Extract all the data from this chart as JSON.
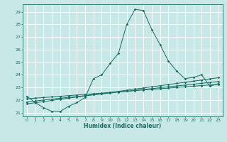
{
  "xlabel": "Humidex (Indice chaleur)",
  "xlim": [
    -0.5,
    23.5
  ],
  "ylim": [
    20.7,
    29.6
  ],
  "yticks": [
    21,
    22,
    23,
    24,
    25,
    26,
    27,
    28,
    29
  ],
  "xticks": [
    0,
    1,
    2,
    3,
    4,
    5,
    6,
    7,
    8,
    9,
    10,
    11,
    12,
    13,
    14,
    15,
    16,
    17,
    18,
    19,
    20,
    21,
    22,
    23
  ],
  "bg_color": "#c8e8e8",
  "grid_color": "#ffffff",
  "line_color": "#1a6b60",
  "series1_x": [
    0,
    1,
    2,
    3,
    4,
    5,
    6,
    7,
    8,
    9,
    10,
    11,
    12,
    13,
    14,
    15,
    16,
    17,
    18,
    19,
    20,
    21,
    22,
    23
  ],
  "series1_y": [
    22.3,
    21.8,
    21.4,
    21.1,
    21.1,
    21.5,
    21.8,
    22.2,
    23.7,
    24.0,
    24.9,
    25.7,
    28.0,
    29.2,
    29.1,
    27.6,
    26.4,
    25.1,
    24.3,
    23.7,
    23.8,
    24.0,
    23.1,
    23.3
  ],
  "series2_x": [
    0,
    1,
    2,
    3,
    4,
    5,
    6,
    7,
    8,
    9,
    10,
    11,
    12,
    13,
    14,
    15,
    16,
    17,
    18,
    19,
    20,
    21,
    22,
    23
  ],
  "series2_y": [
    22.1,
    22.15,
    22.2,
    22.25,
    22.3,
    22.35,
    22.4,
    22.45,
    22.5,
    22.55,
    22.6,
    22.65,
    22.7,
    22.75,
    22.8,
    22.85,
    22.9,
    22.95,
    23.0,
    23.05,
    23.1,
    23.15,
    23.2,
    23.25
  ],
  "series3_x": [
    0,
    1,
    2,
    3,
    4,
    5,
    6,
    7,
    8,
    9,
    10,
    11,
    12,
    13,
    14,
    15,
    16,
    17,
    18,
    19,
    20,
    21,
    22,
    23
  ],
  "series3_y": [
    21.85,
    21.93,
    22.0,
    22.07,
    22.14,
    22.21,
    22.28,
    22.35,
    22.42,
    22.49,
    22.56,
    22.63,
    22.7,
    22.77,
    22.84,
    22.91,
    22.98,
    23.05,
    23.12,
    23.19,
    23.26,
    23.33,
    23.4,
    23.47
  ],
  "series4_x": [
    0,
    1,
    2,
    3,
    4,
    5,
    6,
    7,
    8,
    9,
    10,
    11,
    12,
    13,
    14,
    15,
    16,
    17,
    18,
    19,
    20,
    21,
    22,
    23
  ],
  "series4_y": [
    21.7,
    21.79,
    21.88,
    21.97,
    22.06,
    22.15,
    22.24,
    22.33,
    22.42,
    22.51,
    22.6,
    22.69,
    22.78,
    22.87,
    22.96,
    23.05,
    23.14,
    23.23,
    23.32,
    23.41,
    23.5,
    23.59,
    23.68,
    23.77
  ]
}
